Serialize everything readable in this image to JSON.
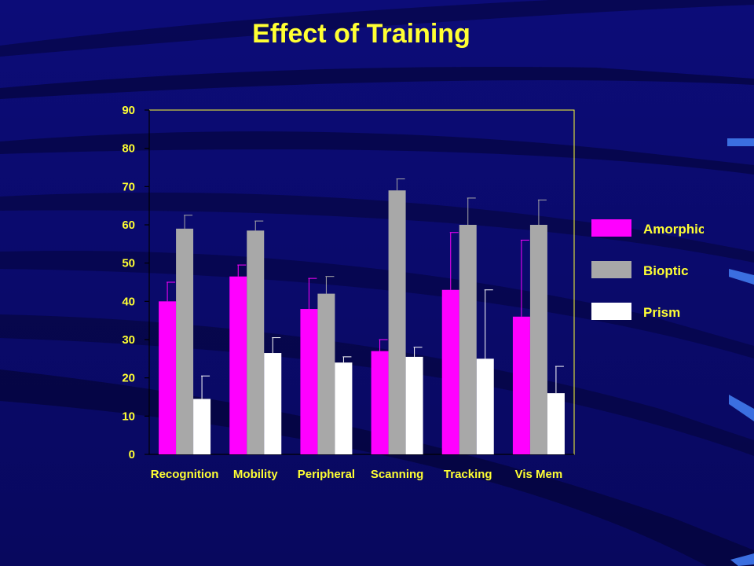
{
  "slide": {
    "title": "Effect of Training"
  },
  "colors": {
    "background": "#0a0a6e",
    "text": "#ffff33",
    "plot_border": "#ffff33",
    "Amorphic": "#ff00ff",
    "Bioptic": "#a8a8a8",
    "Prism": "#ffffff"
  },
  "chart_data": {
    "type": "bar",
    "title": "Effect of Training",
    "xlabel": "",
    "ylabel": "",
    "ylim": [
      0,
      90
    ],
    "yticks": [
      0,
      10,
      20,
      30,
      40,
      50,
      60,
      70,
      80,
      90
    ],
    "grid": false,
    "legend_position": "right",
    "categories": [
      "Recognition",
      "Mobility",
      "Peripheral",
      "Scanning",
      "Tracking",
      "Vis Mem"
    ],
    "series": [
      {
        "name": "Amorphic",
        "values": [
          40,
          46.5,
          38,
          27,
          43,
          36
        ],
        "error": [
          5,
          3,
          8,
          3,
          15,
          20
        ]
      },
      {
        "name": "Bioptic",
        "values": [
          59,
          58.5,
          42,
          69,
          60,
          60
        ],
        "error": [
          3.5,
          2.5,
          4.5,
          3,
          7,
          6.5
        ]
      },
      {
        "name": "Prism",
        "values": [
          14.5,
          26.5,
          24,
          25.5,
          25,
          16
        ],
        "error": [
          6,
          4,
          1.5,
          2.5,
          18,
          7
        ]
      }
    ]
  }
}
